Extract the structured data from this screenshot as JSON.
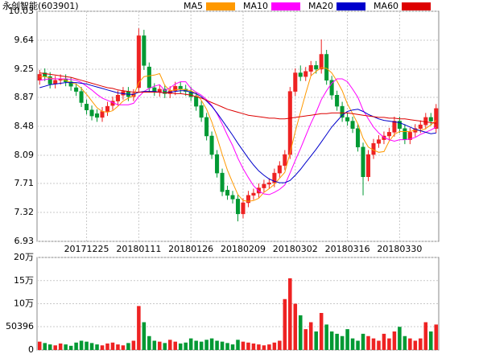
{
  "chart_data": [
    {
      "type": "candlestick",
      "title": "永创智能(603901)",
      "categories": [
        null,
        null,
        null,
        null,
        null,
        null,
        null,
        null,
        null,
        "20171225",
        null,
        null,
        null,
        null,
        null,
        null,
        null,
        null,
        null,
        "20180111",
        null,
        null,
        null,
        null,
        null,
        null,
        null,
        null,
        null,
        "20180126",
        null,
        null,
        null,
        null,
        null,
        null,
        null,
        null,
        null,
        "20180209",
        null,
        null,
        null,
        null,
        null,
        null,
        null,
        null,
        null,
        "20180302",
        null,
        null,
        null,
        null,
        null,
        null,
        null,
        null,
        null,
        "20180316",
        null,
        null,
        null,
        null,
        null,
        null,
        null,
        null,
        null,
        "20180330",
        null,
        null,
        null,
        null,
        null,
        null,
        null
      ],
      "open": [
        9.1,
        9.2,
        9.15,
        9.05,
        9.1,
        9.12,
        9.08,
        9.0,
        8.95,
        8.78,
        8.7,
        8.65,
        8.6,
        8.68,
        8.76,
        8.82,
        8.9,
        8.95,
        8.88,
        9.0,
        9.7,
        9.28,
        9.0,
        8.94,
        8.98,
        8.92,
        8.96,
        9.02,
        8.98,
        8.95,
        8.88,
        8.76,
        8.6,
        8.35,
        8.1,
        7.85,
        7.62,
        7.55,
        7.5,
        7.3,
        7.45,
        7.55,
        7.58,
        7.65,
        7.7,
        7.72,
        7.85,
        7.95,
        8.1,
        8.95,
        9.2,
        9.15,
        9.22,
        9.3,
        9.25,
        9.45,
        9.1,
        8.9,
        8.75,
        8.6,
        8.55,
        8.45,
        8.2,
        7.8,
        8.1,
        8.25,
        8.3,
        8.35,
        8.4,
        8.55,
        8.45,
        8.3,
        8.4,
        8.45,
        8.5,
        8.6,
        8.45
      ],
      "high": [
        9.24,
        9.26,
        9.21,
        9.16,
        9.18,
        9.18,
        9.14,
        9.06,
        9.01,
        8.84,
        8.76,
        8.71,
        8.74,
        8.81,
        8.88,
        8.96,
        9.01,
        9.01,
        8.98,
        9.8,
        9.78,
        9.34,
        9.06,
        9.04,
        9.04,
        9.02,
        9.08,
        9.08,
        9.04,
        9.01,
        8.94,
        8.82,
        8.66,
        8.41,
        8.16,
        7.91,
        7.68,
        7.61,
        7.56,
        7.51,
        7.61,
        7.64,
        7.71,
        7.76,
        7.78,
        7.91,
        8.01,
        8.16,
        9.01,
        9.26,
        9.3,
        9.28,
        9.36,
        9.36,
        9.65,
        9.51,
        9.16,
        8.96,
        8.81,
        8.66,
        8.61,
        8.51,
        8.26,
        8.16,
        8.31,
        8.36,
        8.41,
        8.46,
        8.61,
        8.61,
        8.51,
        8.46,
        8.51,
        8.56,
        8.66,
        8.66,
        8.78
      ],
      "low": [
        9.04,
        9.09,
        8.99,
        8.99,
        9.04,
        9.02,
        8.96,
        8.89,
        8.74,
        8.64,
        8.56,
        8.54,
        8.54,
        8.62,
        8.7,
        8.76,
        8.84,
        8.82,
        8.82,
        8.94,
        9.24,
        8.94,
        8.89,
        8.88,
        8.86,
        8.86,
        8.9,
        8.92,
        8.89,
        8.82,
        8.69,
        8.54,
        8.29,
        8.04,
        7.79,
        7.54,
        7.49,
        7.44,
        7.2,
        7.24,
        7.39,
        7.49,
        7.52,
        7.59,
        7.64,
        7.66,
        7.79,
        7.89,
        8.04,
        8.89,
        9.09,
        9.09,
        9.16,
        9.19,
        9.19,
        9.04,
        8.84,
        8.69,
        8.54,
        8.49,
        8.39,
        8.14,
        7.55,
        7.74,
        8.04,
        8.19,
        8.24,
        8.29,
        8.34,
        8.39,
        8.24,
        8.24,
        8.34,
        8.39,
        8.44,
        8.49,
        8.39
      ],
      "close": [
        9.18,
        9.15,
        9.05,
        9.1,
        9.12,
        9.08,
        9.02,
        8.95,
        8.8,
        8.7,
        8.62,
        8.6,
        8.68,
        8.75,
        8.82,
        8.9,
        8.95,
        8.88,
        8.92,
        9.7,
        9.3,
        9.0,
        8.95,
        8.98,
        8.92,
        8.96,
        9.02,
        8.98,
        8.95,
        8.88,
        8.75,
        8.6,
        8.35,
        8.1,
        7.85,
        7.6,
        7.55,
        7.5,
        7.3,
        7.45,
        7.55,
        7.58,
        7.65,
        7.7,
        7.72,
        7.85,
        7.95,
        8.1,
        8.95,
        9.2,
        9.15,
        9.22,
        9.3,
        9.25,
        9.45,
        9.1,
        8.9,
        8.75,
        8.6,
        8.55,
        8.45,
        8.2,
        7.8,
        8.1,
        8.25,
        8.3,
        8.35,
        8.4,
        8.55,
        8.45,
        8.3,
        8.4,
        8.45,
        8.5,
        8.6,
        8.55,
        8.72
      ],
      "up_color": "#ee2222",
      "down_color": "#009933",
      "series": [
        {
          "name": "MA5",
          "color": "#ff9900",
          "values": [
            9.15,
            9.15,
            9.13,
            9.12,
            9.12,
            9.1,
            9.07,
            9.05,
            8.99,
            8.91,
            8.82,
            8.73,
            8.68,
            8.67,
            8.69,
            8.75,
            8.82,
            8.86,
            8.89,
            9.07,
            9.15,
            9.16,
            9.17,
            9.19,
            9.03,
            8.96,
            8.97,
            8.98,
            8.97,
            8.96,
            8.92,
            8.83,
            8.71,
            8.54,
            8.33,
            8.1,
            7.89,
            7.72,
            7.56,
            7.48,
            7.47,
            7.48,
            7.51,
            7.59,
            7.64,
            7.7,
            7.78,
            7.86,
            8.12,
            8.41,
            8.67,
            8.92,
            9.16,
            9.22,
            9.27,
            9.26,
            9.2,
            9.09,
            8.96,
            8.78,
            8.65,
            8.51,
            8.32,
            8.2,
            8.16,
            8.13,
            8.14,
            8.28,
            8.37,
            8.41,
            8.41,
            8.41,
            8.43,
            8.42,
            8.45,
            8.5,
            8.56
          ]
        },
        {
          "name": "MA10",
          "color": "#ff00ff",
          "values": [
            9.1,
            9.11,
            9.12,
            9.12,
            9.12,
            9.12,
            9.11,
            9.1,
            9.07,
            9.02,
            8.97,
            8.91,
            8.86,
            8.83,
            8.8,
            8.77,
            8.77,
            8.77,
            8.79,
            8.88,
            8.95,
            8.99,
            9.02,
            9.04,
            8.96,
            9.0,
            9.05,
            9.08,
            9.08,
            8.99,
            8.94,
            8.9,
            8.84,
            8.76,
            8.65,
            8.51,
            8.36,
            8.22,
            8.05,
            7.91,
            7.79,
            7.68,
            7.61,
            7.57,
            7.56,
            7.59,
            7.63,
            7.69,
            7.85,
            8.02,
            8.18,
            8.35,
            8.52,
            8.67,
            8.84,
            8.96,
            9.06,
            9.12,
            9.12,
            9.08,
            8.98,
            8.87,
            8.7,
            8.58,
            8.47,
            8.39,
            8.33,
            8.3,
            8.28,
            8.3,
            8.3,
            8.31,
            8.33,
            8.37,
            8.4,
            8.43,
            8.47
          ]
        },
        {
          "name": "MA20",
          "color": "#0000cc",
          "values": [
            9.0,
            9.02,
            9.04,
            9.05,
            9.06,
            9.07,
            9.07,
            9.07,
            9.06,
            9.05,
            9.03,
            9.01,
            8.99,
            8.97,
            8.95,
            8.93,
            8.92,
            8.91,
            8.91,
            8.94,
            8.95,
            8.95,
            8.95,
            8.94,
            8.93,
            8.94,
            8.95,
            8.96,
            8.96,
            8.94,
            8.92,
            8.88,
            8.82,
            8.75,
            8.66,
            8.56,
            8.46,
            8.36,
            8.25,
            8.15,
            8.05,
            7.96,
            7.88,
            7.82,
            7.77,
            7.74,
            7.72,
            7.72,
            7.75,
            7.82,
            7.9,
            7.99,
            8.08,
            8.17,
            8.27,
            8.37,
            8.47,
            8.55,
            8.63,
            8.68,
            8.7,
            8.71,
            8.68,
            8.64,
            8.61,
            8.58,
            8.56,
            8.55,
            8.54,
            8.53,
            8.5,
            8.47,
            8.44,
            8.42,
            8.4,
            8.38,
            8.39
          ]
        },
        {
          "name": "MA60",
          "color": "#dd0000",
          "values": [
            9.2,
            9.19,
            9.18,
            9.17,
            9.16,
            9.15,
            9.14,
            9.12,
            9.1,
            9.08,
            9.06,
            9.04,
            9.02,
            9.0,
            8.99,
            8.97,
            8.96,
            8.95,
            8.94,
            8.94,
            8.94,
            8.94,
            8.94,
            8.94,
            8.93,
            8.93,
            8.92,
            8.92,
            8.91,
            8.9,
            8.88,
            8.86,
            8.83,
            8.8,
            8.77,
            8.74,
            8.71,
            8.69,
            8.67,
            8.65,
            8.63,
            8.62,
            8.61,
            8.6,
            8.59,
            8.59,
            8.58,
            8.58,
            8.59,
            8.6,
            8.61,
            8.62,
            8.63,
            8.64,
            8.65,
            8.65,
            8.66,
            8.66,
            8.66,
            8.66,
            8.65,
            8.64,
            8.63,
            8.62,
            8.61,
            8.6,
            8.6,
            8.59,
            8.59,
            8.58,
            8.58,
            8.57,
            8.56,
            8.55,
            8.54,
            8.53,
            8.52
          ]
        }
      ],
      "ylim": [
        6.93,
        10.03
      ],
      "yticks": [
        10.03,
        9.64,
        9.25,
        8.87,
        8.48,
        8.09,
        7.71,
        7.32,
        6.93
      ],
      "grid": true
    },
    {
      "type": "bar",
      "values": [
        18000,
        15000,
        12000,
        10000,
        14000,
        12000,
        9000,
        16000,
        20000,
        18000,
        15000,
        12000,
        10000,
        14000,
        16000,
        12000,
        10000,
        15000,
        20000,
        95000,
        60000,
        30000,
        20000,
        18000,
        15000,
        22000,
        18000,
        14000,
        16000,
        25000,
        20000,
        18000,
        22000,
        25000,
        20000,
        18000,
        15000,
        12000,
        22000,
        18000,
        16000,
        14000,
        12000,
        10000,
        12000,
        16000,
        20000,
        110000,
        155000,
        100000,
        75000,
        45000,
        60000,
        40000,
        80000,
        55000,
        40000,
        35000,
        30000,
        45000,
        25000,
        20000,
        35000,
        30000,
        25000,
        20000,
        35000,
        25000,
        40000,
        50000,
        30000,
        25000,
        20000,
        25000,
        60000,
        40000,
        55000
      ],
      "ylim": [
        0,
        200000
      ],
      "yticks": [
        {
          "value": 200000,
          "label": "20万"
        },
        {
          "value": 150000,
          "label": "15万"
        },
        {
          "value": 100000,
          "label": "10万"
        },
        50396,
        0
      ],
      "grid": true
    }
  ]
}
